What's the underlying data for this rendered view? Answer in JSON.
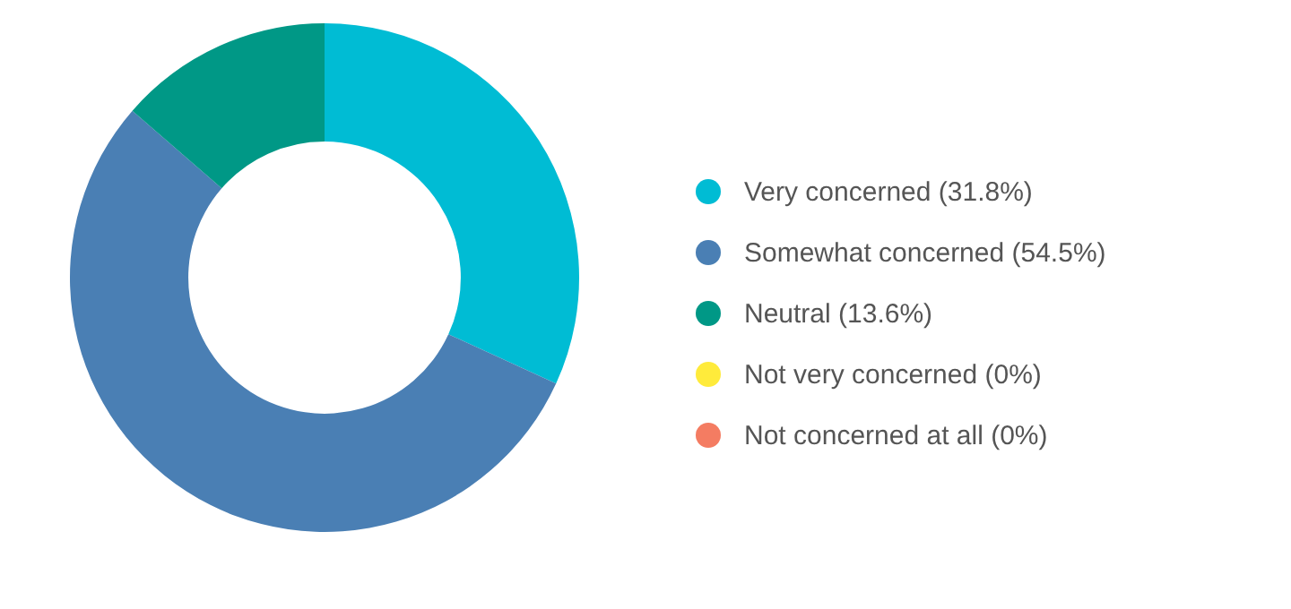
{
  "chart_data": {
    "type": "donut",
    "categories": [
      "Very concerned (31.8%)",
      "Somewhat concerned (54.5%)",
      "Neutral (13.6%)",
      "Not very concerned (0%)",
      "Not concerned at all (0%)"
    ],
    "values": [
      31.8,
      54.5,
      13.6,
      0,
      0
    ],
    "colors": [
      "#00bcd4",
      "#4a7fb4",
      "#009886",
      "#ffeb3b",
      "#f47c62"
    ],
    "legend": "right"
  }
}
